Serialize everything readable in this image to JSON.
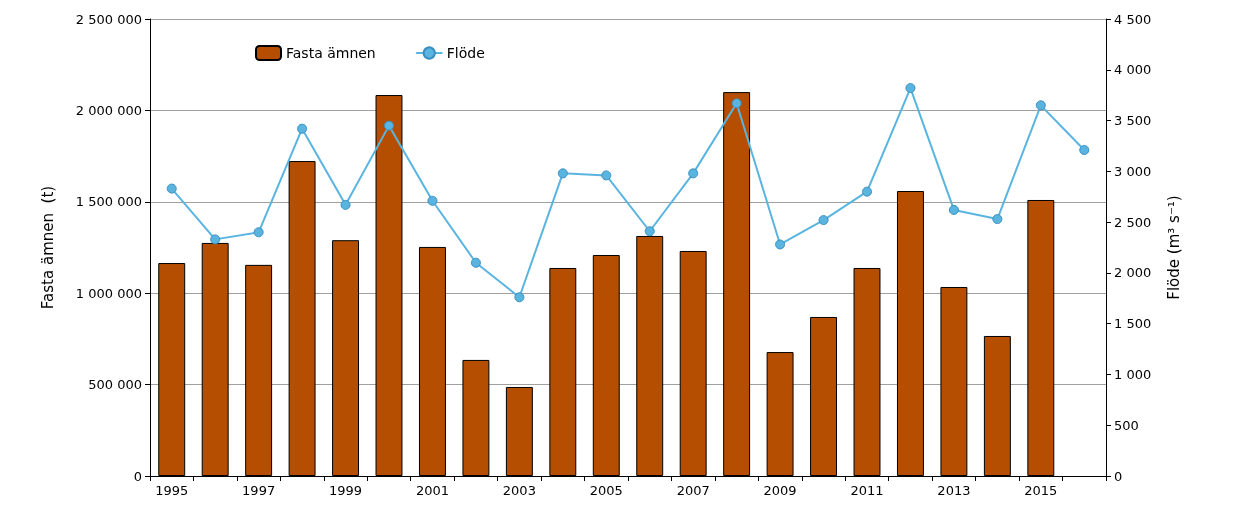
{
  "chart_data": {
    "type": "bar",
    "categories": [
      "1995",
      null,
      "1997",
      null,
      "1999",
      null,
      "2001",
      null,
      "2003",
      null,
      "2005",
      null,
      "2007",
      null,
      "2009",
      null,
      "2011",
      null,
      "2013",
      null,
      "2015",
      null
    ],
    "ylabel": "Fasta ämnen  (t)",
    "y2label": "Flöde (m³ s⁻¹)",
    "series": [
      {
        "name": "Fasta ämnen",
        "color": "#b54e00",
        "values": [
          1165000,
          1275000,
          1155000,
          1723000,
          1290000,
          2084000,
          1253000,
          635000,
          487000,
          1138000,
          1209000,
          1313000,
          1231000,
          2100000,
          678000,
          870000,
          1138000,
          1559000,
          1034000,
          766000,
          1510000,
          null
        ]
      },
      {
        "name": "Flöde",
        "type": "line",
        "axis": "y2",
        "color": "#5ab4e0",
        "values": [
          2830,
          2330,
          2400,
          3420,
          2670,
          3450,
          2710,
          2100,
          1760,
          2980,
          2960,
          2410,
          2980,
          3670,
          2280,
          2520,
          2800,
          3820,
          2620,
          2530,
          3650,
          3210
        ]
      }
    ],
    "ylim": [
      0,
      2500000
    ],
    "yticks": [
      0,
      {
        "value": 500000,
        "label": "500 000"
      },
      {
        "value": 1000000,
        "label": "1 000 000"
      },
      {
        "value": 1500000,
        "label": "1 500 000"
      },
      {
        "value": 2000000,
        "label": "2 000 000"
      },
      {
        "value": 2500000,
        "label": "2 500 000"
      }
    ],
    "y2lim": [
      0,
      4500
    ],
    "y2ticks": [
      0,
      500,
      {
        "value": 1000,
        "label": "1 000"
      },
      {
        "value": 1500,
        "label": "1 500"
      },
      {
        "value": 2000,
        "label": "2 000"
      },
      {
        "value": 2500,
        "label": "2 500"
      },
      {
        "value": 3000,
        "label": "3 000"
      },
      {
        "value": 3500,
        "label": "3 500"
      },
      {
        "value": 4000,
        "label": "4 000"
      },
      {
        "value": 4500,
        "label": "4 500"
      }
    ],
    "grid": "y",
    "legend": "top left",
    "marker": "circle",
    "line_style": "solid"
  }
}
